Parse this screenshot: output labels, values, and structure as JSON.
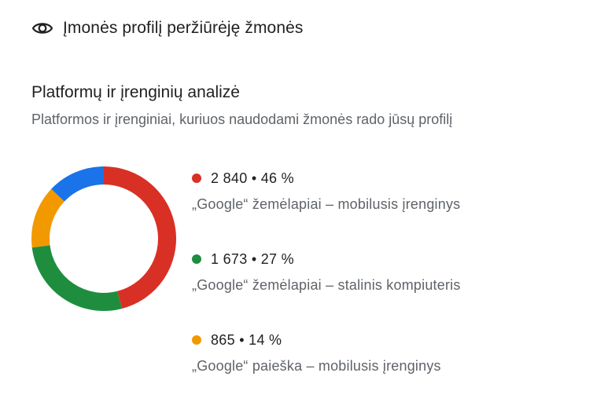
{
  "header": {
    "icon": "eye-icon",
    "title": "Įmonės profilį peržiūrėję žmonės"
  },
  "section": {
    "title": "Platformų ir įrenginių analizė",
    "subtitle": "Platformos ir įrenginiai, kuriuos naudodami žmonės rado jūsų profilį"
  },
  "legend": [
    {
      "value_text": "2 840 • 46 %",
      "label": "„Google“ žemėlapiai – mobilusis įrenginys",
      "color": "#d93025"
    },
    {
      "value_text": "1 673 • 27 %",
      "label": "„Google“ žemėlapiai – stalinis kompiuteris",
      "color": "#1e8e3e"
    },
    {
      "value_text": "865 • 14 %",
      "label": "„Google“ paieška – mobilusis įrenginys",
      "color": "#f29900"
    }
  ],
  "chart_data": {
    "type": "pie",
    "variant": "donut",
    "title": "Platformų ir įrenginių analizė",
    "subtitle": "Platformos ir įrenginiai, kuriuos naudodami žmonės rado jūsų profilį",
    "legend_position": "right",
    "slices": [
      {
        "name": "„Google“ žemėlapiai – mobilusis įrenginys",
        "value": 2840,
        "percent": 46,
        "color": "#d93025"
      },
      {
        "name": "„Google“ žemėlapiai – stalinis kompiuteris",
        "value": 1673,
        "percent": 27,
        "color": "#1e8e3e"
      },
      {
        "name": "„Google“ paieška – mobilusis įrenginys",
        "value": 865,
        "percent": 14,
        "color": "#f29900"
      },
      {
        "value": 800,
        "percent": 13,
        "color": "#1a73e8"
      }
    ]
  }
}
